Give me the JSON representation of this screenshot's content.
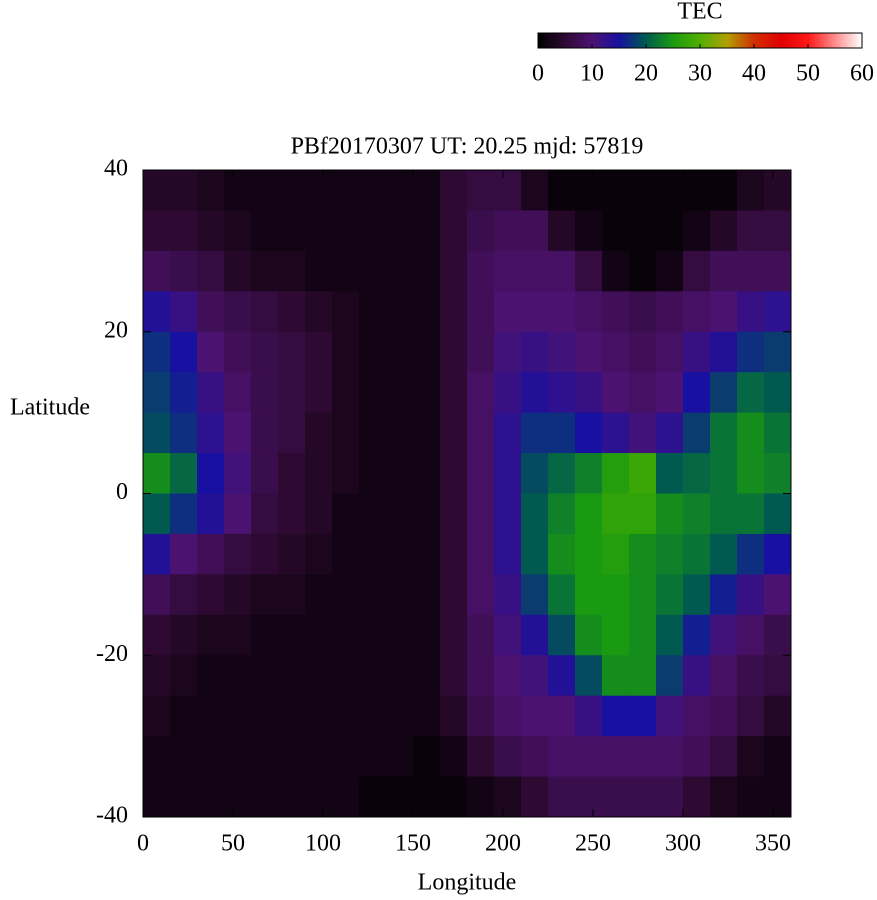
{
  "chart_data": {
    "type": "heatmap",
    "title": "PBf20170307  UT: 20.25  mjd: 57819",
    "x_label": "Longitude",
    "y_label": "Latitude",
    "colorbar_label": "TEC",
    "x": [
      7.5,
      22.5,
      37.5,
      52.5,
      67.5,
      82.5,
      97.5,
      112.5,
      127.5,
      142.5,
      157.5,
      172.5,
      187.5,
      202.5,
      217.5,
      232.5,
      247.5,
      262.5,
      277.5,
      292.5,
      307.5,
      322.5,
      337.5,
      352.5
    ],
    "y": [
      37.5,
      32.5,
      27.5,
      22.5,
      17.5,
      12.5,
      7.5,
      2.5,
      -2.5,
      -7.5,
      -12.5,
      -17.5,
      -22.5,
      -27.5,
      -32.5,
      -37.5
    ],
    "values": [
      [
        4,
        4,
        3,
        2,
        2,
        2,
        2,
        2,
        2,
        2,
        2,
        5,
        6,
        6,
        3,
        1,
        1,
        1,
        1,
        1,
        1,
        1,
        3,
        4
      ],
      [
        5,
        5,
        4,
        3,
        2,
        2,
        2,
        2,
        2,
        2,
        2,
        5,
        7,
        8,
        8,
        4,
        2,
        1,
        1,
        1,
        2,
        4,
        6,
        6
      ],
      [
        8,
        7,
        6,
        4,
        3,
        3,
        2,
        2,
        2,
        2,
        2,
        5,
        8,
        9,
        9,
        9,
        6,
        2,
        1,
        2,
        6,
        8,
        8,
        8
      ],
      [
        14,
        12,
        8,
        7,
        6,
        5,
        4,
        3,
        2,
        2,
        2,
        5,
        8,
        10,
        10,
        10,
        9,
        8,
        7,
        8,
        9,
        10,
        12,
        13
      ],
      [
        17,
        15,
        10,
        8,
        7,
        6,
        5,
        3,
        2,
        2,
        2,
        5,
        8,
        11,
        12,
        11,
        10,
        9,
        8,
        9,
        12,
        14,
        17,
        18
      ],
      [
        18,
        16,
        12,
        9,
        7,
        6,
        5,
        3,
        2,
        2,
        2,
        5,
        9,
        12,
        14,
        13,
        12,
        10,
        9,
        10,
        15,
        18,
        21,
        20
      ],
      [
        19,
        17,
        13,
        10,
        7,
        6,
        4,
        3,
        2,
        2,
        2,
        5,
        9,
        13,
        17,
        17,
        15,
        13,
        11,
        13,
        18,
        22,
        24,
        22
      ],
      [
        24,
        21,
        15,
        11,
        7,
        5,
        4,
        3,
        2,
        2,
        2,
        5,
        9,
        13,
        19,
        21,
        23,
        26,
        28,
        20,
        21,
        22,
        24,
        23
      ],
      [
        20,
        17,
        14,
        10,
        6,
        5,
        4,
        2,
        2,
        2,
        2,
        5,
        9,
        13,
        20,
        23,
        25,
        27,
        27,
        24,
        23,
        22,
        22,
        20
      ],
      [
        14,
        10,
        8,
        6,
        5,
        4,
        3,
        2,
        2,
        2,
        2,
        5,
        9,
        13,
        20,
        24,
        25,
        26,
        24,
        23,
        22,
        20,
        17,
        15
      ],
      [
        8,
        6,
        5,
        4,
        3,
        3,
        2,
        2,
        2,
        2,
        2,
        5,
        9,
        12,
        18,
        22,
        25,
        25,
        24,
        22,
        20,
        16,
        12,
        10
      ],
      [
        5,
        4,
        3,
        3,
        2,
        2,
        2,
        2,
        2,
        2,
        2,
        5,
        8,
        11,
        14,
        19,
        24,
        25,
        24,
        20,
        16,
        11,
        9,
        7
      ],
      [
        4,
        3,
        2,
        2,
        2,
        2,
        2,
        2,
        2,
        2,
        2,
        5,
        8,
        10,
        11,
        14,
        19,
        24,
        24,
        18,
        12,
        9,
        7,
        6
      ],
      [
        3,
        2,
        2,
        2,
        2,
        2,
        2,
        2,
        2,
        2,
        2,
        4,
        7,
        9,
        10,
        10,
        12,
        15,
        15,
        11,
        9,
        8,
        6,
        4
      ],
      [
        2,
        2,
        2,
        2,
        2,
        2,
        2,
        2,
        2,
        2,
        1,
        2,
        5,
        7,
        8,
        9,
        9,
        9,
        9,
        9,
        8,
        6,
        3,
        2
      ],
      [
        2,
        2,
        2,
        2,
        2,
        2,
        2,
        2,
        1,
        1,
        1,
        1,
        2,
        3,
        5,
        7,
        7,
        7,
        7,
        7,
        5,
        3,
        2,
        2
      ]
    ],
    "xlim": [
      0,
      360
    ],
    "xticks": [
      0,
      50,
      100,
      150,
      200,
      250,
      300,
      350
    ],
    "ylim": [
      -40,
      40
    ],
    "yticks": [
      -40,
      -20,
      0,
      20,
      40
    ],
    "clim": [
      0,
      60
    ],
    "cticks": [
      0,
      10,
      20,
      30,
      40,
      50,
      60
    ],
    "colorscale": [
      {
        "value": 0,
        "color": "#000000"
      },
      {
        "value": 5,
        "color": "#2e0a32"
      },
      {
        "value": 10,
        "color": "#4c1272"
      },
      {
        "value": 15,
        "color": "#1810a0"
      },
      {
        "value": 20,
        "color": "#005a50"
      },
      {
        "value": 25,
        "color": "#1a9a10"
      },
      {
        "value": 30,
        "color": "#50b000"
      },
      {
        "value": 35,
        "color": "#b0a000"
      },
      {
        "value": 40,
        "color": "#d03000"
      },
      {
        "value": 45,
        "color": "#e00000"
      },
      {
        "value": 50,
        "color": "#ff1818"
      },
      {
        "value": 55,
        "color": "#ff8c8c"
      },
      {
        "value": 60,
        "color": "#ffffff"
      }
    ]
  }
}
